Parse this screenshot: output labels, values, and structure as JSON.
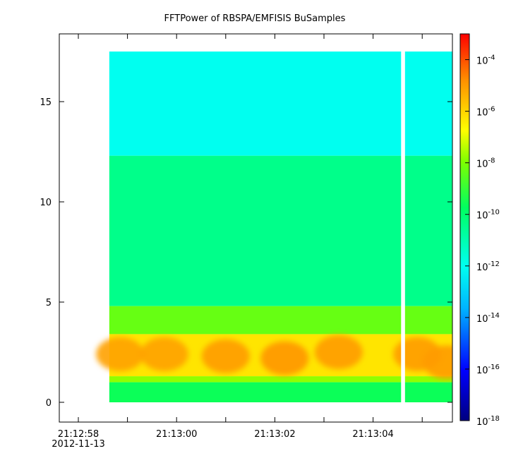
{
  "chart_data": {
    "type": "heatmap",
    "title": "FFTPower of RBSPA/EMFISIS  BuSamples",
    "xlabel": "",
    "ylabel": "",
    "x_range": [
      "2012-11-13 21:12:57.5",
      "2012-11-13 21:13:05.8"
    ],
    "x_ticks": [
      {
        "label": "21:12:58",
        "sublabel": "2012-11-13",
        "t": 0
      },
      {
        "label": "",
        "t": 1
      },
      {
        "label": "21:13:00",
        "t": 2
      },
      {
        "label": "",
        "t": 3
      },
      {
        "label": "21:13:02",
        "t": 4
      },
      {
        "label": "",
        "t": 5
      },
      {
        "label": "21:13:04",
        "t": 6
      },
      {
        "label": "",
        "t": 7
      }
    ],
    "ylim": [
      -0.9,
      18.5
    ],
    "y_ticks": [
      0,
      5,
      10,
      15
    ],
    "data_extent": {
      "t_start": 0.63,
      "t_end": 7.62,
      "y_min": 0,
      "y_max": 17.5
    },
    "data_gap": {
      "t_start": 6.57,
      "t_end": 6.65
    },
    "colorbar": {
      "scale": "log",
      "range": [
        1e-18,
        0.001
      ],
      "tick_exponents": [
        -18,
        -16,
        -14,
        -12,
        -10,
        -8,
        -6,
        -4
      ]
    },
    "bands": [
      {
        "y_from": 12.3,
        "y_to": 17.5,
        "log_power": -12.0
      },
      {
        "y_from": 4.8,
        "y_to": 12.3,
        "log_power": -10.4
      },
      {
        "y_from": 3.4,
        "y_to": 4.8,
        "log_power": -8.3
      },
      {
        "y_from": 1.3,
        "y_to": 3.4,
        "log_power": -6.3
      },
      {
        "y_from": 1.0,
        "y_to": 1.3,
        "log_power": -7.8
      },
      {
        "y_from": 0.0,
        "y_to": 1.0,
        "log_power": -9.6
      }
    ],
    "bursts": [
      {
        "t": 0.85,
        "y_center": 2.4,
        "log_power": -5.1
      },
      {
        "t": 1.75,
        "y_center": 2.4,
        "log_power": -5.1
      },
      {
        "t": 3.0,
        "y_center": 2.3,
        "log_power": -5.0
      },
      {
        "t": 4.2,
        "y_center": 2.2,
        "log_power": -4.9
      },
      {
        "t": 5.3,
        "y_center": 2.5,
        "log_power": -5.0
      },
      {
        "t": 6.9,
        "y_center": 2.4,
        "log_power": -5.0
      },
      {
        "t": 7.5,
        "y_center": 2.0,
        "log_power": -5.0
      }
    ]
  }
}
